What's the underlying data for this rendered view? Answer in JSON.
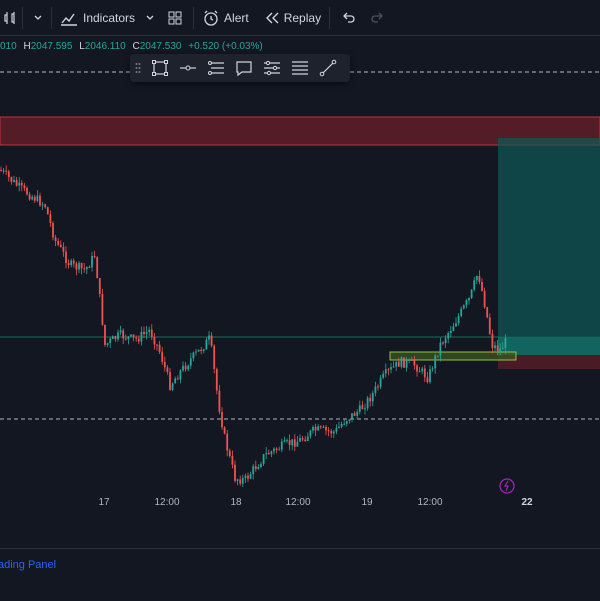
{
  "toolbar": {
    "indicators_label": "Indicators",
    "alert_label": "Alert",
    "replay_label": "Replay"
  },
  "ohlc": {
    "open_partial": "010",
    "h_key": "H",
    "high": "2047.595",
    "l_key": "L",
    "low": "2046.110",
    "c_key": "C",
    "close": "2047.530",
    "change": "+0.520 (+0.03%)"
  },
  "time_axis": [
    "17",
    "12:00",
    "18",
    "12:00",
    "19",
    "12:00",
    "22"
  ],
  "bottom": {
    "trading_panel": "ading Panel"
  },
  "colors": {
    "bull": "#26a69a",
    "bear": "#ef5350",
    "accent": "#2962ff"
  },
  "icons": [
    "chart-style-icon",
    "chevron-down-icon",
    "indicators-icon",
    "templates-icon",
    "alert-icon",
    "replay-icon",
    "undo-icon",
    "redo-icon",
    "rectangle-icon",
    "line-tool-icon",
    "levels-icon",
    "comment-icon",
    "settings-lines-icon",
    "text-lines-icon",
    "trendline-icon",
    "lightning-icon"
  ]
}
